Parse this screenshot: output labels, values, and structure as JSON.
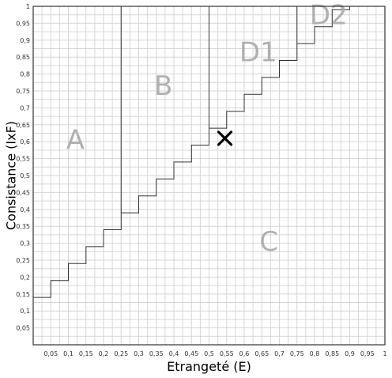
{
  "chart_data": {
    "type": "line",
    "xlabel": "Etrangeté (E)",
    "ylabel": "Consistance (IxF)",
    "xlim": [
      0,
      1
    ],
    "ylim": [
      0,
      1
    ],
    "grid": true,
    "x_ticks": [
      "0,05",
      "0,1",
      "0,15",
      "0,2",
      "0,25",
      "0,3",
      "0,35",
      "0,4",
      "0,45",
      "0,5",
      "0,55",
      "0,6",
      "0,65",
      "0,7",
      "0,75",
      "0,8",
      "0,85",
      "0,9",
      "0,95",
      "1"
    ],
    "y_ticks": [
      "0,05",
      "0,1",
      "0,15",
      "0,2",
      "0,25",
      "0,3",
      "0,35",
      "0,4",
      "0,45",
      "0,5",
      "0,55",
      "0,6",
      "0,65",
      "0,7",
      "0,75",
      "0,8",
      "0,85",
      "0,9",
      "0,95",
      "1"
    ],
    "boundary": {
      "x": [
        0,
        0.05,
        0.05,
        0.1,
        0.1,
        0.15,
        0.15,
        0.2,
        0.2,
        0.25,
        0.25,
        0.3,
        0.3,
        0.35,
        0.35,
        0.4,
        0.4,
        0.45,
        0.45,
        0.5,
        0.5,
        0.55,
        0.55,
        0.6,
        0.6,
        0.65,
        0.65,
        0.7,
        0.7,
        0.75,
        0.75,
        0.8,
        0.8,
        0.85,
        0.85,
        0.9,
        0.9
      ],
      "y": [
        0.14,
        0.14,
        0.19,
        0.19,
        0.24,
        0.24,
        0.29,
        0.29,
        0.34,
        0.34,
        0.39,
        0.39,
        0.44,
        0.44,
        0.49,
        0.49,
        0.54,
        0.54,
        0.59,
        0.59,
        0.64,
        0.64,
        0.69,
        0.69,
        0.74,
        0.74,
        0.79,
        0.79,
        0.84,
        0.84,
        0.89,
        0.89,
        0.94,
        0.94,
        0.99,
        0.99,
        1.0
      ]
    },
    "dividers": [
      {
        "x": 0.25,
        "y_from": 0.39,
        "y_to": 1.0
      },
      {
        "x": 0.5,
        "y_from": 0.64,
        "y_to": 1.0
      },
      {
        "x": 0.75,
        "y_from": 0.89,
        "y_to": 1.0
      }
    ],
    "regions": [
      {
        "label": "A",
        "x": 0.12,
        "y": 0.6
      },
      {
        "label": "B",
        "x": 0.37,
        "y": 0.76
      },
      {
        "label": "C",
        "x": 0.67,
        "y": 0.3
      },
      {
        "label": "D1",
        "x": 0.64,
        "y": 0.86
      },
      {
        "label": "D2",
        "x": 0.84,
        "y": 0.97
      }
    ],
    "marker": {
      "symbol": "×",
      "x": 0.545,
      "y": 0.61
    }
  }
}
